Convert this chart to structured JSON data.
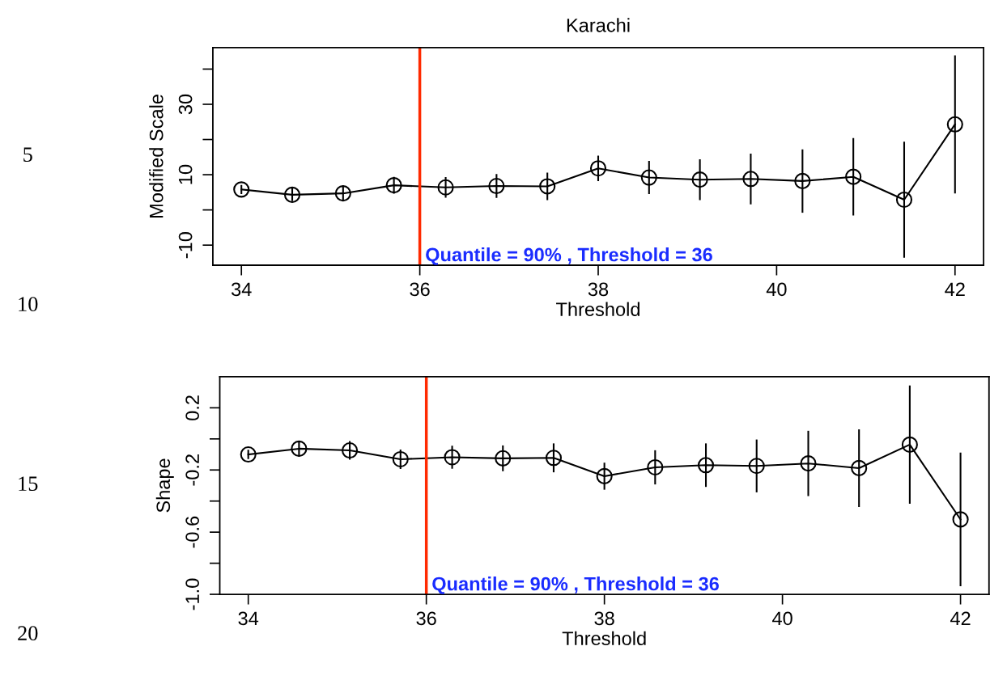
{
  "chart_data": [
    {
      "type": "line",
      "title": "Karachi",
      "xlabel": "Threshold",
      "ylabel": "Modified Scale",
      "x": [
        34,
        34.57,
        35.14,
        35.71,
        36.29,
        36.86,
        37.43,
        38,
        38.57,
        39.14,
        39.71,
        40.29,
        40.86,
        41.43,
        42
      ],
      "series": [
        {
          "color": "#000000",
          "values": [
            5.8,
            4.3,
            4.7,
            7.0,
            6.4,
            6.8,
            6.7,
            11.8,
            9.2,
            8.6,
            8.8,
            8.2,
            9.4,
            2.9,
            24.3
          ],
          "errors": [
            1.3,
            1.8,
            2.2,
            2.4,
            2.9,
            3.4,
            3.9,
            3.6,
            4.7,
            5.8,
            7.2,
            9.0,
            11.0,
            16.5,
            19.6
          ]
        }
      ],
      "marker": "circle",
      "line_style": "solid",
      "xlim": [
        33.68,
        42.32
      ],
      "ylim": [
        -15.7,
        46.1
      ],
      "xticks": [
        34,
        36,
        38,
        40,
        42
      ],
      "yticks": [
        {
          "value": -10,
          "label": "-10"
        },
        {
          "value": 0,
          "label": null
        },
        10,
        {
          "value": 20,
          "label": null
        },
        30,
        {
          "value": 40,
          "label": null
        }
      ],
      "ref_lines": [
        {
          "axis": "x",
          "value": 36,
          "label": "Quantile = 90% , Threshold = 36",
          "color": "#ff2a00"
        }
      ],
      "annotations": [
        "5",
        "10"
      ]
    },
    {
      "type": "line",
      "xlabel": "Threshold",
      "ylabel": "Shape",
      "x": [
        34,
        34.57,
        35.14,
        35.71,
        36.29,
        36.86,
        37.43,
        38,
        38.57,
        39.14,
        39.71,
        40.29,
        40.86,
        41.43,
        42
      ],
      "series": [
        {
          "color": "#000000",
          "values": [
            -0.1,
            -0.063,
            -0.074,
            -0.131,
            -0.118,
            -0.125,
            -0.122,
            -0.24,
            -0.183,
            -0.169,
            -0.174,
            -0.158,
            -0.188,
            -0.037,
            -0.518
          ],
          "errors": [
            0.03,
            0.05,
            0.06,
            0.062,
            0.074,
            0.083,
            0.093,
            0.087,
            0.11,
            0.14,
            0.17,
            0.21,
            0.25,
            0.38,
            0.43
          ]
        }
      ],
      "marker": "circle",
      "line_style": "solid",
      "xlim": [
        33.68,
        42.32
      ],
      "ylim": [
        -1.0,
        0.4
      ],
      "xticks": [
        34,
        36,
        38,
        40,
        42
      ],
      "yticks": [
        {
          "value": -1.0,
          "label": "-1.0"
        },
        {
          "value": -0.8,
          "label": null
        },
        {
          "value": -0.6,
          "label": "-0.6"
        },
        {
          "value": -0.4,
          "label": null
        },
        {
          "value": -0.2,
          "label": "-0.2"
        },
        {
          "value": 0.0,
          "label": null
        },
        {
          "value": 0.2,
          "label": "0.2"
        }
      ],
      "ref_lines": [
        {
          "axis": "x",
          "value": 36,
          "label": "Quantile = 90% , Threshold = 36",
          "color": "#ff2a00"
        }
      ],
      "annotations": [
        "15",
        "20"
      ]
    }
  ]
}
